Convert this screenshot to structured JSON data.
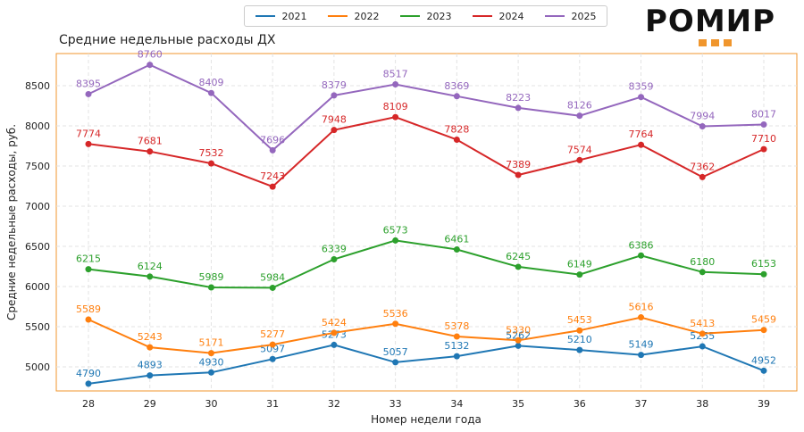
{
  "chart_data": {
    "type": "line",
    "title": "Средние недельные расходы ДХ",
    "xlabel": "Номер недели года",
    "ylabel": "Средние недельные расходы, руб.",
    "x": [
      28,
      29,
      30,
      31,
      32,
      33,
      34,
      35,
      36,
      37,
      38,
      39
    ],
    "ylim": [
      4700,
      8900
    ],
    "yticks": [
      5000,
      5500,
      6000,
      6500,
      7000,
      7500,
      8000,
      8500
    ],
    "grid": true,
    "legend_position": "top-center",
    "series": [
      {
        "name": "2021",
        "color": "#1f77b4",
        "values": [
          4790,
          4893,
          4930,
          5097,
          5273,
          5057,
          5132,
          5262,
          5210,
          5149,
          5255,
          4952
        ]
      },
      {
        "name": "2022",
        "color": "#ff7f0e",
        "values": [
          5589,
          5243,
          5171,
          5277,
          5424,
          5536,
          5378,
          5330,
          5453,
          5616,
          5413,
          5459
        ]
      },
      {
        "name": "2023",
        "color": "#2ca02c",
        "values": [
          6215,
          6124,
          5989,
          5984,
          6339,
          6573,
          6461,
          6245,
          6149,
          6386,
          6180,
          6153
        ]
      },
      {
        "name": "2024",
        "color": "#d62728",
        "values": [
          7774,
          7681,
          7532,
          7243,
          7948,
          8109,
          7828,
          7389,
          7574,
          7764,
          7362,
          7710
        ]
      },
      {
        "name": "2025",
        "color": "#9467bd",
        "values": [
          8395,
          8760,
          8409,
          7696,
          8379,
          8517,
          8369,
          8223,
          8126,
          8359,
          7994,
          8017
        ]
      }
    ]
  },
  "logo": {
    "text": "РОМИР",
    "square_color": "#f0962d"
  },
  "colors": {
    "frame": "#f0962d",
    "grid": "#e3e3e3"
  }
}
